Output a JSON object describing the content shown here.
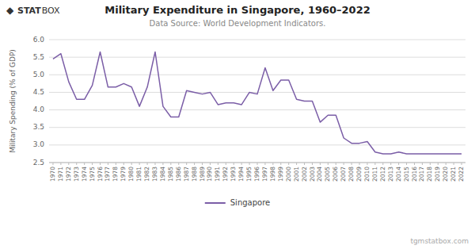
{
  "chart_data": {
    "type": "line",
    "title": "Military Expenditure in Singapore, 1960–2022",
    "subtitle": "Data Source: World Development Indicators.",
    "ylabel": "Military Spending (% of GDP)",
    "annotations": [
      "◆",
      "STAT",
      "BOX",
      "tgmstatbox.com"
    ],
    "x": [
      1970,
      1971,
      1972,
      1973,
      1974,
      1975,
      1976,
      1977,
      1978,
      1979,
      1980,
      1981,
      1982,
      1983,
      1984,
      1985,
      1986,
      1987,
      1988,
      1989,
      1990,
      1991,
      1992,
      1993,
      1994,
      1995,
      1996,
      1997,
      1998,
      1999,
      2000,
      2001,
      2002,
      2003,
      2004,
      2005,
      2006,
      2007,
      2008,
      2009,
      2010,
      2011,
      2012,
      2013,
      2014,
      2015,
      2016,
      2017,
      2018,
      2019,
      2020,
      2021,
      2022
    ],
    "series": [
      {
        "name": "Singapore",
        "color": "#7B5EA7",
        "values": [
          5.45,
          5.6,
          4.8,
          4.3,
          4.3,
          4.7,
          5.65,
          4.65,
          4.65,
          4.75,
          4.65,
          4.1,
          4.65,
          5.65,
          4.1,
          3.8,
          3.8,
          4.55,
          4.5,
          4.45,
          4.5,
          4.15,
          4.2,
          4.2,
          4.15,
          4.5,
          4.45,
          5.2,
          4.55,
          4.85,
          4.85,
          4.3,
          4.25,
          4.25,
          3.65,
          3.85,
          3.85,
          3.2,
          3.05,
          3.05,
          3.1,
          2.8,
          2.75,
          2.75,
          2.8,
          2.75,
          2.75,
          2.75,
          2.75,
          2.75,
          2.75,
          2.75,
          2.75
        ]
      }
    ],
    "xlim": [
      1969.5,
      2022.5
    ],
    "xticks": [
      1970,
      1971,
      1972,
      1973,
      1974,
      1975,
      1976,
      1977,
      1978,
      1979,
      1980,
      1981,
      1982,
      1983,
      1984,
      1985,
      1986,
      1987,
      1988,
      1989,
      1990,
      1991,
      1992,
      1993,
      1994,
      1995,
      1996,
      1997,
      1998,
      1999,
      2000,
      2001,
      2002,
      2003,
      2004,
      2005,
      2006,
      2007,
      2008,
      2009,
      2010,
      2011,
      2012,
      2013,
      2014,
      2015,
      2016,
      2017,
      2018,
      2019,
      2020,
      2021,
      2022
    ],
    "ylim": [
      2.5,
      6.0
    ],
    "yticks": [
      2.5,
      {
        "value": 3.0,
        "label": "3.0"
      },
      3.5,
      {
        "value": 4.0,
        "label": "4.0"
      },
      4.5,
      {
        "value": 5.0,
        "label": "5.0"
      },
      5.5,
      {
        "value": 6.0,
        "label": "6.0"
      }
    ],
    "grid": true,
    "legend": "bottom"
  }
}
